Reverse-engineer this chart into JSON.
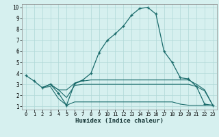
{
  "xlabel": "Humidex (Indice chaleur)",
  "bg_color": "#d6f0ef",
  "grid_color": "#b0d8d8",
  "line_color": "#1a6b6b",
  "xlim": [
    -0.5,
    23.5
  ],
  "ylim": [
    0.7,
    10.3
  ],
  "yticks": [
    1,
    2,
    3,
    4,
    5,
    6,
    7,
    8,
    9,
    10
  ],
  "xticks": [
    0,
    1,
    2,
    3,
    4,
    5,
    6,
    7,
    8,
    9,
    10,
    11,
    12,
    13,
    14,
    15,
    16,
    17,
    18,
    19,
    20,
    21,
    22,
    23
  ],
  "main_x": [
    0,
    1,
    2,
    3,
    4,
    5,
    6,
    7,
    8,
    9,
    10,
    11,
    12,
    13,
    14,
    15,
    16,
    17,
    18,
    19,
    20,
    21,
    22,
    23
  ],
  "main_y": [
    3.8,
    3.3,
    2.7,
    3.0,
    2.2,
    1.1,
    3.1,
    3.4,
    4.0,
    5.9,
    7.0,
    7.6,
    8.3,
    9.3,
    9.9,
    10.0,
    9.4,
    6.0,
    5.0,
    3.6,
    3.5,
    2.8,
    1.2,
    1.1
  ],
  "upper_x": [
    2,
    3,
    4,
    5,
    6,
    7,
    8,
    9,
    10,
    11,
    12,
    13,
    14,
    15,
    16,
    17,
    18,
    19,
    20,
    21,
    22,
    23
  ],
  "upper_y": [
    2.7,
    3.0,
    2.5,
    2.5,
    3.1,
    3.3,
    3.4,
    3.4,
    3.4,
    3.4,
    3.4,
    3.4,
    3.4,
    3.4,
    3.4,
    3.4,
    3.4,
    3.4,
    3.4,
    3.0,
    2.5,
    1.1
  ],
  "mid_x": [
    2,
    3,
    4,
    5,
    6,
    7,
    8,
    9,
    10,
    11,
    12,
    13,
    14,
    15,
    16,
    17,
    18,
    19,
    20,
    21,
    22,
    23
  ],
  "mid_y": [
    2.7,
    3.0,
    2.5,
    1.8,
    2.9,
    3.0,
    3.0,
    3.0,
    3.0,
    3.0,
    3.0,
    3.0,
    3.0,
    3.0,
    3.0,
    3.0,
    3.0,
    3.0,
    3.0,
    2.8,
    2.4,
    1.1
  ],
  "low_x": [
    2,
    3,
    4,
    5,
    6,
    7,
    8,
    9,
    10,
    11,
    12,
    13,
    14,
    15,
    16,
    17,
    18,
    19,
    20,
    21,
    22,
    23
  ],
  "low_y": [
    2.7,
    2.8,
    1.7,
    1.1,
    1.4,
    1.4,
    1.4,
    1.4,
    1.4,
    1.4,
    1.4,
    1.4,
    1.4,
    1.4,
    1.4,
    1.4,
    1.4,
    1.2,
    1.1,
    1.1,
    1.1,
    1.1
  ]
}
